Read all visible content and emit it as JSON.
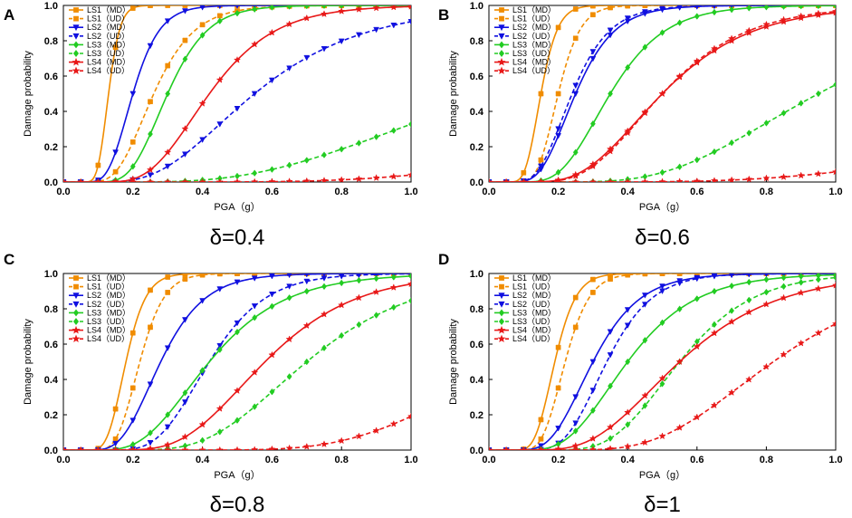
{
  "figure": {
    "shared_x_domain": [
      0,
      1
    ],
    "shared_y_domain": [
      0,
      1
    ]
  },
  "chart_data": [
    {
      "type": "line",
      "panel": "A",
      "caption": "δ=0.4",
      "xlabel": "PGA（g）",
      "ylabel": "Damage probability",
      "xlim": [
        0,
        1
      ],
      "ylim": [
        0,
        1
      ],
      "xticks": [
        "0.0",
        "0.2",
        "0.4",
        "0.6",
        "0.8",
        "1.0"
      ],
      "yticks": [
        "0.0",
        "0.2",
        "0.4",
        "0.6",
        "0.8",
        "1.0"
      ],
      "legend": "top-left",
      "series": [
        {
          "name": "LS1（MD）",
          "color": "#f08c00",
          "dash": false,
          "marker": "square",
          "median": 0.13,
          "beta": 0.2
        },
        {
          "name": "LS1（UD）",
          "color": "#f08c00",
          "dash": true,
          "marker": "square",
          "median": 0.26,
          "beta": 0.35
        },
        {
          "name": "LS2（MD）",
          "color": "#1010e0",
          "dash": false,
          "marker": "triangle-down",
          "median": 0.2,
          "beta": 0.3
        },
        {
          "name": "LS2（UD）",
          "color": "#1010e0",
          "dash": true,
          "marker": "triangle-down",
          "median": 0.55,
          "beta": 0.45
        },
        {
          "name": "LS3（MD）",
          "color": "#22cc22",
          "dash": false,
          "marker": "diamond",
          "median": 0.3,
          "beta": 0.3
        },
        {
          "name": "LS3（UD）",
          "color": "#22cc22",
          "dash": true,
          "marker": "diamond",
          "median": 1.25,
          "beta": 0.5
        },
        {
          "name": "LS4（MD）",
          "color": "#e81818",
          "dash": false,
          "marker": "star",
          "median": 0.42,
          "beta": 0.35
        },
        {
          "name": "LS4（UD）",
          "color": "#e81818",
          "dash": true,
          "marker": "star",
          "median": 2.2,
          "beta": 0.45
        }
      ]
    },
    {
      "type": "line",
      "panel": "B",
      "caption": "δ=0.6",
      "xlabel": "PGA（g）",
      "ylabel": "Damage probability",
      "xlim": [
        0,
        1
      ],
      "ylim": [
        0,
        1
      ],
      "xticks": [
        "0.0",
        "0.2",
        "0.4",
        "0.6",
        "0.8",
        "1.0"
      ],
      "yticks": [
        "0.0",
        "0.2",
        "0.4",
        "0.6",
        "0.8",
        "1.0"
      ],
      "legend": "top-left",
      "series": [
        {
          "name": "LS1（MD）",
          "color": "#f08c00",
          "dash": false,
          "marker": "square",
          "median": 0.15,
          "beta": 0.25
        },
        {
          "name": "LS1（UD）",
          "color": "#f08c00",
          "dash": true,
          "marker": "square",
          "median": 0.2,
          "beta": 0.25
        },
        {
          "name": "LS2（MD）",
          "color": "#1010e0",
          "dash": false,
          "marker": "triangle-down",
          "median": 0.25,
          "beta": 0.35
        },
        {
          "name": "LS2（UD）",
          "color": "#1010e0",
          "dash": true,
          "marker": "triangle-down",
          "median": 0.24,
          "beta": 0.35
        },
        {
          "name": "LS3（MD）",
          "color": "#22cc22",
          "dash": false,
          "marker": "diamond",
          "median": 0.35,
          "beta": 0.35
        },
        {
          "name": "LS3（UD）",
          "color": "#22cc22",
          "dash": true,
          "marker": "diamond",
          "median": 0.95,
          "beta": 0.4
        },
        {
          "name": "LS4（MD）",
          "color": "#e81818",
          "dash": false,
          "marker": "star",
          "median": 0.5,
          "beta": 0.4
        },
        {
          "name": "LS4（UD）",
          "color": "#e81818",
          "dash": true,
          "marker": "star",
          "median": 0.5,
          "beta": 0.38
        },
        {
          "name": "",
          "color": "#e81818",
          "dash": true,
          "marker": "star",
          "median": 2.2,
          "beta": 0.5
        }
      ]
    },
    {
      "type": "line",
      "panel": "C",
      "caption": "δ=0.8",
      "xlabel": "PGA（g）",
      "ylabel": "Damage probability",
      "xlim": [
        0,
        1
      ],
      "ylim": [
        0,
        1
      ],
      "xticks": [
        "0.0",
        "0.2",
        "0.4",
        "0.6",
        "0.8",
        "1.0"
      ],
      "yticks": [
        "0.0",
        "0.2",
        "0.4",
        "0.6",
        "0.8",
        "1.0"
      ],
      "legend": "top-left",
      "series": [
        {
          "name": "LS1（MD）",
          "color": "#f08c00",
          "dash": false,
          "marker": "square",
          "median": 0.18,
          "beta": 0.25
        },
        {
          "name": "LS1（UD）",
          "color": "#f08c00",
          "dash": true,
          "marker": "square",
          "median": 0.22,
          "beta": 0.25
        },
        {
          "name": "LS2（MD）",
          "color": "#1010e0",
          "dash": false,
          "marker": "triangle-down",
          "median": 0.28,
          "beta": 0.35
        },
        {
          "name": "LS2（UD）",
          "color": "#1010e0",
          "dash": true,
          "marker": "triangle-down",
          "median": 0.42,
          "beta": 0.3
        },
        {
          "name": "LS3（MD）",
          "color": "#22cc22",
          "dash": false,
          "marker": "diamond",
          "median": 0.42,
          "beta": 0.4
        },
        {
          "name": "LS3（UD）",
          "color": "#22cc22",
          "dash": true,
          "marker": "diamond",
          "median": 0.7,
          "beta": 0.35
        },
        {
          "name": "LS4（MD）",
          "color": "#e81818",
          "dash": false,
          "marker": "star",
          "median": 0.58,
          "beta": 0.35
        },
        {
          "name": "LS4（UD）",
          "color": "#e81818",
          "dash": true,
          "marker": "star",
          "median": 1.3,
          "beta": 0.3
        }
      ]
    },
    {
      "type": "line",
      "panel": "D",
      "caption": "δ=1",
      "xlabel": "PGA（g）",
      "ylabel": "Damage probability",
      "xlim": [
        0,
        1
      ],
      "ylim": [
        0,
        1
      ],
      "xticks": [
        "0.0",
        "0.2",
        "0.4",
        "0.6",
        "0.8",
        "1.0"
      ],
      "yticks": [
        "0.0",
        "0.2",
        "0.4",
        "0.6",
        "0.8",
        "1.0"
      ],
      "legend": "top-left",
      "series": [
        {
          "name": "LS1（MD）",
          "color": "#f08c00",
          "dash": false,
          "marker": "square",
          "median": 0.19,
          "beta": 0.25
        },
        {
          "name": "LS1（UD）",
          "color": "#f08c00",
          "dash": true,
          "marker": "square",
          "median": 0.22,
          "beta": 0.25
        },
        {
          "name": "LS2（MD）",
          "color": "#1010e0",
          "dash": false,
          "marker": "triangle-down",
          "median": 0.3,
          "beta": 0.35
        },
        {
          "name": "LS2（UD）",
          "color": "#1010e0",
          "dash": true,
          "marker": "triangle-down",
          "median": 0.34,
          "beta": 0.3
        },
        {
          "name": "LS3（MD）",
          "color": "#22cc22",
          "dash": false,
          "marker": "diamond",
          "median": 0.4,
          "beta": 0.38
        },
        {
          "name": "LS3（UD）",
          "color": "#22cc22",
          "dash": true,
          "marker": "diamond",
          "median": 0.55,
          "beta": 0.3
        },
        {
          "name": "LS4（MD）",
          "color": "#e81818",
          "dash": false,
          "marker": "star",
          "median": 0.55,
          "beta": 0.4
        },
        {
          "name": "LS4（UD）",
          "color": "#e81818",
          "dash": true,
          "marker": "star",
          "median": 0.82,
          "beta": 0.35
        }
      ]
    }
  ]
}
